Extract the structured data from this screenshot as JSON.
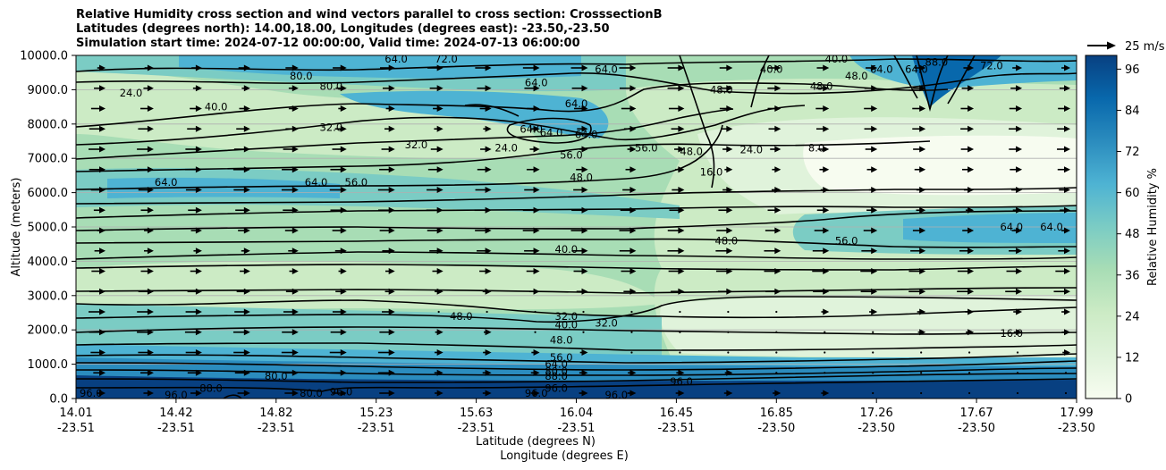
{
  "chart_data": {
    "type": "contour",
    "title": "Relative Humidity cross section and wind vectors parallel to cross section: CrosssectionB",
    "title_lines": [
      "Relative Humidity cross section and wind vectors parallel to cross section: CrosssectionB",
      "Latitudes (degrees north): 14.00,18.00, Longitudes (degrees east): -23.50,-23.50",
      "Simulation start time: 2024-07-12 00:00:00, Valid time: 2024-07-13 06:00:00"
    ],
    "ylabel": "Altitude (meters)",
    "xlabel_lines": [
      "Latitude (degrees N)",
      "Longitude (degrees E)"
    ],
    "ylim": [
      0,
      10000
    ],
    "yticks": [
      "0.0",
      "1000.0",
      "2000.0",
      "3000.0",
      "4000.0",
      "5000.0",
      "6000.0",
      "7000.0",
      "8000.0",
      "9000.0",
      "10000.0"
    ],
    "ytick_values": [
      0,
      1000,
      2000,
      3000,
      4000,
      5000,
      6000,
      7000,
      8000,
      9000,
      10000
    ],
    "xticks": [
      {
        "lat": "14.01",
        "lon": "-23.51",
        "frac": 0.0
      },
      {
        "lat": "14.42",
        "lon": "-23.51",
        "frac": 0.1
      },
      {
        "lat": "14.82",
        "lon": "-23.51",
        "frac": 0.2
      },
      {
        "lat": "15.23",
        "lon": "-23.51",
        "frac": 0.3
      },
      {
        "lat": "15.63",
        "lon": "-23.51",
        "frac": 0.4
      },
      {
        "lat": "16.04",
        "lon": "-23.51",
        "frac": 0.5
      },
      {
        "lat": "16.45",
        "lon": "-23.51",
        "frac": 0.6
      },
      {
        "lat": "16.85",
        "lon": "-23.50",
        "frac": 0.7
      },
      {
        "lat": "17.26",
        "lon": "-23.50",
        "frac": 0.8
      },
      {
        "lat": "17.67",
        "lon": "-23.50",
        "frac": 0.9
      },
      {
        "lat": "17.99",
        "lon": "-23.50",
        "frac": 1.0
      }
    ],
    "grid": true,
    "colorbar": {
      "label": "Relative Humidity %",
      "ticks": [
        "0",
        "12",
        "24",
        "36",
        "48",
        "60",
        "72",
        "84",
        "96"
      ],
      "tick_values": [
        0,
        12,
        24,
        36,
        48,
        60,
        72,
        84,
        96
      ],
      "range": [
        0,
        100
      ],
      "colormap": "GnBu",
      "colors": [
        "#f7fcf0",
        "#e0f3db",
        "#ccebc5",
        "#a8ddb5",
        "#7bccc4",
        "#4eb3d3",
        "#2b8cbe",
        "#0868ac",
        "#084081"
      ]
    },
    "quiver_key": {
      "label": "25 m/s",
      "value": 25
    },
    "contour_levels": [
      8,
      16,
      24,
      32,
      40,
      48,
      56,
      64,
      72,
      80,
      88,
      96
    ],
    "contour_labels": [
      {
        "text": "80.0",
        "frac": 0.225,
        "alt": 9400
      },
      {
        "text": "24.0",
        "frac": 0.055,
        "alt": 8900
      },
      {
        "text": "40.0",
        "frac": 0.14,
        "alt": 8500
      },
      {
        "text": "80.0",
        "frac": 0.255,
        "alt": 9100
      },
      {
        "text": "32.0",
        "frac": 0.255,
        "alt": 7900
      },
      {
        "text": "72.0",
        "frac": 0.37,
        "alt": 9900
      },
      {
        "text": "64.0",
        "frac": 0.32,
        "alt": 9900
      },
      {
        "text": "64.0",
        "frac": 0.53,
        "alt": 9600
      },
      {
        "text": "64.0",
        "frac": 0.46,
        "alt": 9200
      },
      {
        "text": "64.0",
        "frac": 0.5,
        "alt": 8600
      },
      {
        "text": "64.0",
        "frac": 0.455,
        "alt": 7850
      },
      {
        "text": "64.0",
        "frac": 0.51,
        "alt": 7700
      },
      {
        "text": "64.0",
        "frac": 0.475,
        "alt": 7750
      },
      {
        "text": "32.0",
        "frac": 0.34,
        "alt": 7400
      },
      {
        "text": "24.0",
        "frac": 0.43,
        "alt": 7300
      },
      {
        "text": "56.0",
        "frac": 0.495,
        "alt": 7100
      },
      {
        "text": "56.0",
        "frac": 0.57,
        "alt": 7300
      },
      {
        "text": "48.0",
        "frac": 0.505,
        "alt": 6450
      },
      {
        "text": "48.0",
        "frac": 0.615,
        "alt": 7200
      },
      {
        "text": "16.0",
        "frac": 0.635,
        "alt": 6600
      },
      {
        "text": "24.0",
        "frac": 0.675,
        "alt": 7250
      },
      {
        "text": "8.0",
        "frac": 0.74,
        "alt": 7300
      },
      {
        "text": "48.0",
        "frac": 0.645,
        "alt": 9000
      },
      {
        "text": "40.0",
        "frac": 0.695,
        "alt": 9600
      },
      {
        "text": "48.0",
        "frac": 0.745,
        "alt": 9100
      },
      {
        "text": "48.0",
        "frac": 0.78,
        "alt": 9400
      },
      {
        "text": "40.0",
        "frac": 0.76,
        "alt": 9900
      },
      {
        "text": "64.0",
        "frac": 0.805,
        "alt": 9600
      },
      {
        "text": "64.0",
        "frac": 0.84,
        "alt": 9600
      },
      {
        "text": "88.0",
        "frac": 0.86,
        "alt": 9800
      },
      {
        "text": "72.0",
        "frac": 0.915,
        "alt": 9700
      },
      {
        "text": "64.0",
        "frac": 0.09,
        "alt": 6300
      },
      {
        "text": "64.0",
        "frac": 0.24,
        "alt": 6300
      },
      {
        "text": "56.0",
        "frac": 0.28,
        "alt": 6300
      },
      {
        "text": "40.0",
        "frac": 0.49,
        "alt": 4350
      },
      {
        "text": "48.0",
        "frac": 0.65,
        "alt": 4600
      },
      {
        "text": "56.0",
        "frac": 0.77,
        "alt": 4600
      },
      {
        "text": "64.0",
        "frac": 0.935,
        "alt": 5000
      },
      {
        "text": "64.0",
        "frac": 0.975,
        "alt": 5000
      },
      {
        "text": "32.0",
        "frac": 0.49,
        "alt": 2400
      },
      {
        "text": "40.0",
        "frac": 0.49,
        "alt": 2150
      },
      {
        "text": "32.0",
        "frac": 0.53,
        "alt": 2200
      },
      {
        "text": "48.0",
        "frac": 0.385,
        "alt": 2400
      },
      {
        "text": "16.0",
        "frac": 0.935,
        "alt": 1900
      },
      {
        "text": "48.0",
        "frac": 0.485,
        "alt": 1700
      },
      {
        "text": "56.0",
        "frac": 0.485,
        "alt": 1200
      },
      {
        "text": "64.0",
        "frac": 0.48,
        "alt": 1000
      },
      {
        "text": "80.0",
        "frac": 0.48,
        "alt": 800
      },
      {
        "text": "88.0",
        "frac": 0.48,
        "alt": 650
      },
      {
        "text": "96.0",
        "frac": 0.48,
        "alt": 300
      },
      {
        "text": "80.0",
        "frac": 0.2,
        "alt": 650
      },
      {
        "text": "88.0",
        "frac": 0.135,
        "alt": 300
      },
      {
        "text": "96.0",
        "frac": 0.015,
        "alt": 150
      },
      {
        "text": "96.0",
        "frac": 0.1,
        "alt": 100
      },
      {
        "text": "80.0",
        "frac": 0.235,
        "alt": 150
      },
      {
        "text": "96.0",
        "frac": 0.265,
        "alt": 200
      },
      {
        "text": "96.0",
        "frac": 0.46,
        "alt": 150
      },
      {
        "text": "96.0",
        "frac": 0.54,
        "alt": 100
      },
      {
        "text": "96.0",
        "frac": 0.605,
        "alt": 500
      }
    ]
  }
}
